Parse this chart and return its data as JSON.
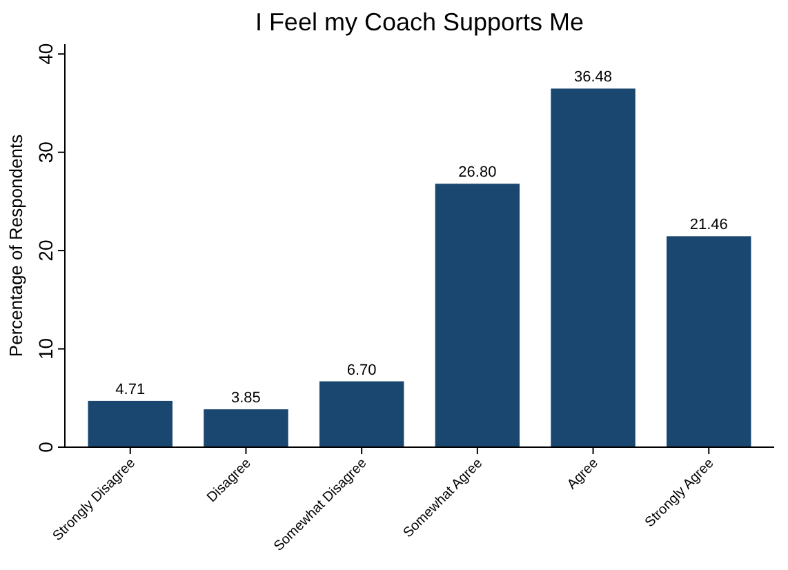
{
  "chart_data": {
    "type": "bar",
    "title": "I Feel my Coach Supports Me",
    "ylabel": "Percentage of Respondents",
    "categories": [
      "Strongly Disagree",
      "Disagree",
      "Somewhat Disagree",
      "Somewhat Agree",
      "Agree",
      "Strongly Agree"
    ],
    "values": [
      4.71,
      3.85,
      6.7,
      26.8,
      36.48,
      21.46
    ],
    "value_labels": [
      "4.71",
      "3.85",
      "6.70",
      "26.80",
      "36.48",
      "21.46"
    ],
    "color": "#1a476f",
    "ylim": [
      0,
      41
    ],
    "yticks": [
      0,
      10,
      20,
      30,
      40
    ]
  }
}
